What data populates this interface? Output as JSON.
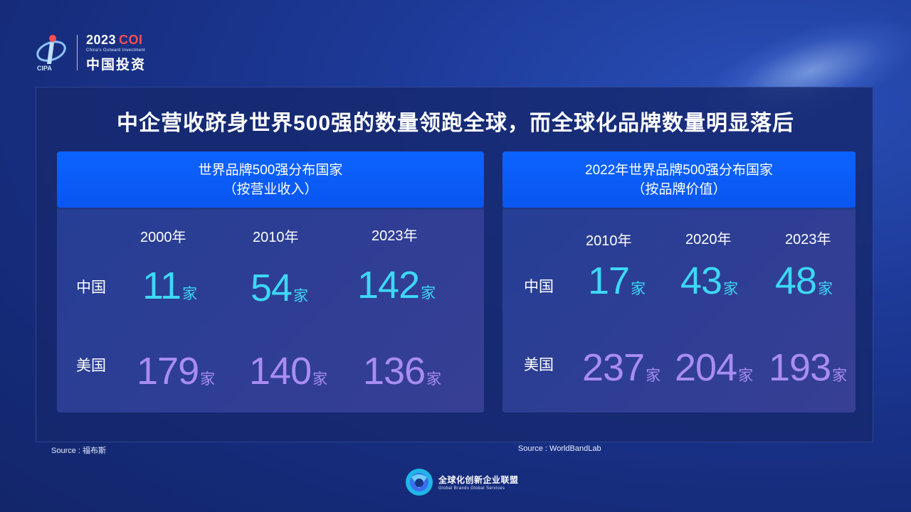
{
  "header": {
    "logo_abbr": "CIPA",
    "year": "2023",
    "brand": "COI",
    "subtitle": "China's Outward Investment",
    "cn_name": "中国投资"
  },
  "title": "中企营收跻身世界500强的数量领跑全球，而全球化品牌数量明显落后",
  "left_card": {
    "heading_line1": "世界品牌500强分布国家",
    "heading_line2": "（按营业收入）",
    "years": [
      "2000年",
      "2010年",
      "2023年"
    ],
    "row_china": "中国",
    "row_us": "美国",
    "china_values": [
      "11",
      "54",
      "142"
    ],
    "us_values": [
      "179",
      "140",
      "136"
    ],
    "unit": "家"
  },
  "right_card": {
    "heading_line1": "2022年世界品牌500强分布国家",
    "heading_line2": "（按品牌价值）",
    "years": [
      "2010年",
      "2020年",
      "2023年"
    ],
    "row_china": "中国",
    "row_us": "美国",
    "china_values": [
      "17",
      "43",
      "48"
    ],
    "us_values": [
      "237",
      "204",
      "193"
    ],
    "unit": "家"
  },
  "sources": {
    "left": "Source : 福布斯",
    "right": "Source : WorldBandLab"
  },
  "footer": {
    "cn": "全球化创新企业联盟",
    "en": "Global Brands Global Services"
  },
  "colors": {
    "china": "#3dd8f5",
    "us": "#a98cf2",
    "header_blue": "#0c63ff"
  }
}
